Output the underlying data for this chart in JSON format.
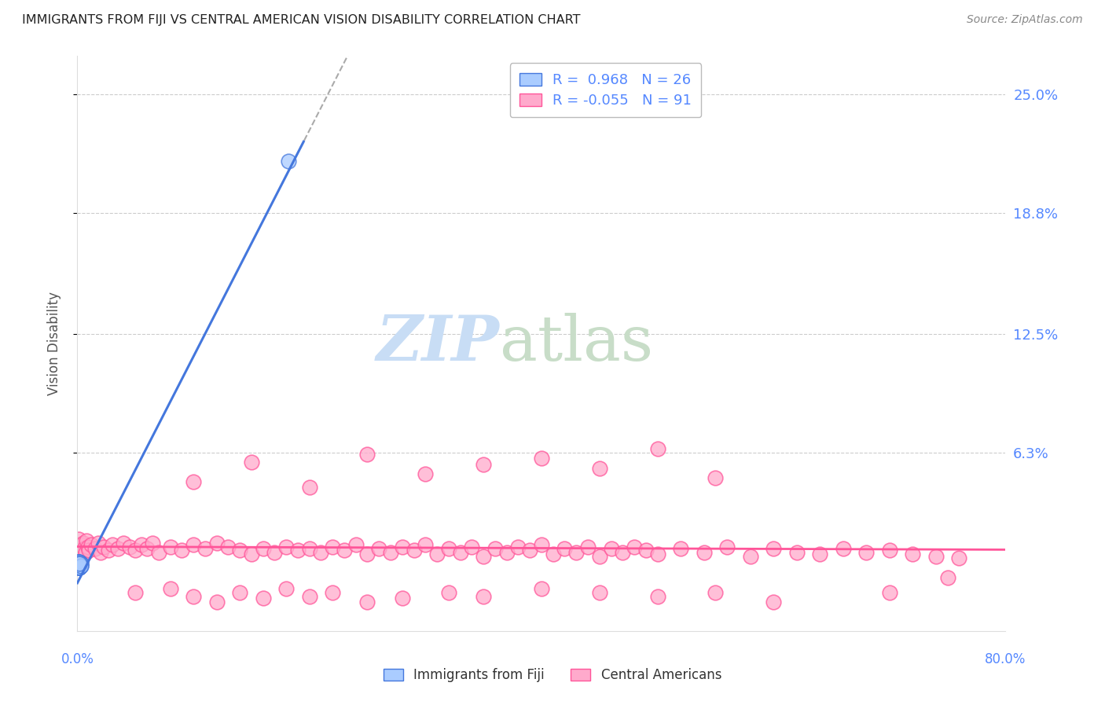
{
  "title": "IMMIGRANTS FROM FIJI VS CENTRAL AMERICAN VISION DISABILITY CORRELATION CHART",
  "source": "Source: ZipAtlas.com",
  "ylabel": "Vision Disability",
  "ytick_labels": [
    "25.0%",
    "18.8%",
    "12.5%",
    "6.3%"
  ],
  "ytick_values": [
    0.25,
    0.188,
    0.125,
    0.063
  ],
  "xlim": [
    0.0,
    0.8
  ],
  "ylim": [
    -0.03,
    0.27
  ],
  "fiji_R": 0.968,
  "fiji_N": 26,
  "ca_R": -0.055,
  "ca_N": 91,
  "fiji_line_color": "#4477dd",
  "fiji_face_color": "#aaccff",
  "fiji_edge_color": "#4477dd",
  "ca_line_color": "#ff5599",
  "ca_face_color": "#ffaacc",
  "ca_edge_color": "#ff5599",
  "background_color": "#ffffff",
  "grid_color": "#cccccc",
  "title_color": "#222222",
  "axis_label_color": "#5588ff",
  "source_color": "#888888",
  "fiji_scatter_x": [
    0.001,
    0.002,
    0.001,
    0.003,
    0.001,
    0.002,
    0.001,
    0.002,
    0.001,
    0.003,
    0.001,
    0.002,
    0.001,
    0.002,
    0.001,
    0.002,
    0.001,
    0.003,
    0.001,
    0.002,
    0.001,
    0.002,
    0.001,
    0.003,
    0.182,
    0.002
  ],
  "fiji_scatter_y": [
    0.006,
    0.005,
    0.004,
    0.005,
    0.003,
    0.006,
    0.004,
    0.005,
    0.003,
    0.004,
    0.005,
    0.003,
    0.006,
    0.004,
    0.005,
    0.003,
    0.004,
    0.005,
    0.003,
    0.004,
    0.006,
    0.003,
    0.005,
    0.004,
    0.215,
    0.005
  ],
  "ca_scatter_x": [
    0.001,
    0.002,
    0.003,
    0.004,
    0.005,
    0.006,
    0.007,
    0.008,
    0.009,
    0.01,
    0.012,
    0.015,
    0.018,
    0.02,
    0.023,
    0.027,
    0.03,
    0.035,
    0.04,
    0.045,
    0.05,
    0.055,
    0.06,
    0.065,
    0.07,
    0.08,
    0.09,
    0.1,
    0.11,
    0.12,
    0.13,
    0.14,
    0.15,
    0.16,
    0.17,
    0.18,
    0.19,
    0.2,
    0.21,
    0.22,
    0.23,
    0.24,
    0.25,
    0.26,
    0.27,
    0.28,
    0.29,
    0.3,
    0.31,
    0.32,
    0.33,
    0.34,
    0.35,
    0.36,
    0.37,
    0.38,
    0.39,
    0.4,
    0.41,
    0.42,
    0.43,
    0.44,
    0.45,
    0.46,
    0.47,
    0.48,
    0.49,
    0.5,
    0.52,
    0.54,
    0.56,
    0.58,
    0.6,
    0.62,
    0.64,
    0.66,
    0.68,
    0.7,
    0.72,
    0.74,
    0.76,
    0.1,
    0.15,
    0.2,
    0.25,
    0.3,
    0.35,
    0.4,
    0.45,
    0.5,
    0.55
  ],
  "ca_scatter_y": [
    0.018,
    0.012,
    0.015,
    0.01,
    0.016,
    0.013,
    0.011,
    0.017,
    0.014,
    0.012,
    0.015,
    0.013,
    0.016,
    0.011,
    0.014,
    0.012,
    0.015,
    0.013,
    0.016,
    0.014,
    0.012,
    0.015,
    0.013,
    0.016,
    0.011,
    0.014,
    0.012,
    0.015,
    0.013,
    0.016,
    0.014,
    0.012,
    0.01,
    0.013,
    0.011,
    0.014,
    0.012,
    0.013,
    0.011,
    0.014,
    0.012,
    0.015,
    0.01,
    0.013,
    0.011,
    0.014,
    0.012,
    0.015,
    0.01,
    0.013,
    0.011,
    0.014,
    0.009,
    0.013,
    0.011,
    0.014,
    0.012,
    0.015,
    0.01,
    0.013,
    0.011,
    0.014,
    0.009,
    0.013,
    0.011,
    0.014,
    0.012,
    0.01,
    0.013,
    0.011,
    0.014,
    0.009,
    0.013,
    0.011,
    0.01,
    0.013,
    0.011,
    0.012,
    0.01,
    0.009,
    0.008,
    0.048,
    0.058,
    0.045,
    0.062,
    0.052,
    0.057,
    0.06,
    0.055,
    0.065,
    0.05
  ],
  "ca_low_x": [
    0.05,
    0.08,
    0.1,
    0.12,
    0.14,
    0.16,
    0.18,
    0.2,
    0.22,
    0.25,
    0.28,
    0.32,
    0.35,
    0.4,
    0.45,
    0.5,
    0.55,
    0.6,
    0.7,
    0.75
  ],
  "ca_low_y": [
    -0.01,
    -0.008,
    -0.012,
    -0.015,
    -0.01,
    -0.013,
    -0.008,
    -0.012,
    -0.01,
    -0.015,
    -0.013,
    -0.01,
    -0.012,
    -0.008,
    -0.01,
    -0.012,
    -0.01,
    -0.015,
    -0.01,
    -0.002
  ]
}
